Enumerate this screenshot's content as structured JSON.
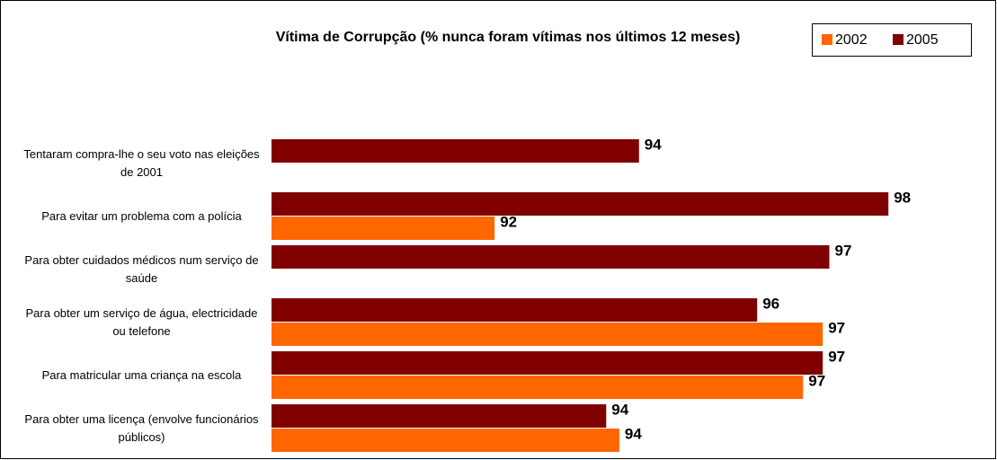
{
  "chart_data": {
    "type": "hbar",
    "title": "Vítima de Corrupção (% nunca foram vítimas nos últimos 12 meses)",
    "categories": [
      "Tentaram compra-lhe o seu voto nas eleições de 2001",
      "Para evitar um problema com a polícia",
      "Para obter cuidados médicos num serviço de saúde",
      "Para obter um serviço de água, electricidade ou telefone",
      "Para matricular uma criança na escola",
      "Para obter uma licença (envolve funcionários públicos)"
    ],
    "series": [
      {
        "name": "2002",
        "color": "#ff6600",
        "values": [
          null,
          92.0,
          null,
          97.0,
          96.7,
          93.9
        ],
        "value_labels": [
          null,
          "92",
          null,
          "97",
          "97",
          "94"
        ]
      },
      {
        "name": "2005",
        "color": "#800000",
        "values": [
          94.2,
          98.0,
          97.1,
          96.0,
          97.0,
          93.7
        ],
        "value_labels": [
          "94",
          "98",
          "97",
          "96",
          "97",
          "94"
        ]
      }
    ],
    "xlim": [
      88.6,
      99.6
    ],
    "legend": "top-right"
  }
}
